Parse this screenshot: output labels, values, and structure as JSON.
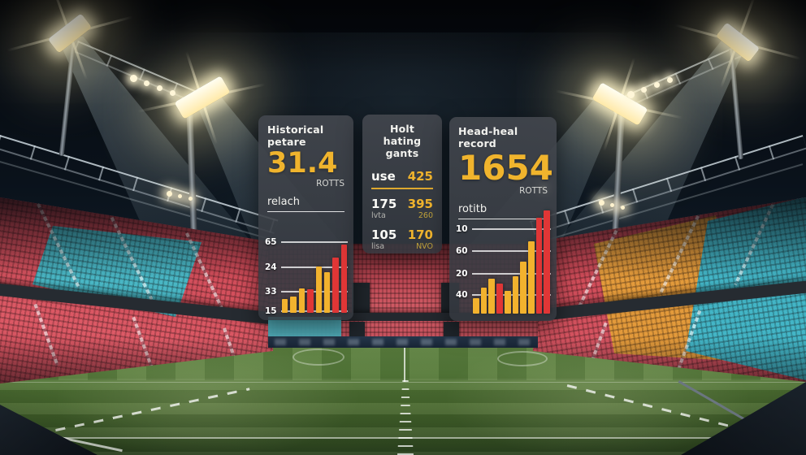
{
  "colors": {
    "accent_yellow": "#f0b42d",
    "bar_yellow": "#f2b22e",
    "bar_red": "#e03636",
    "panel_bg": "rgba(58,62,68,0.9)",
    "seat_red": "#cf4a57",
    "seat_cyan": "#49b6c4",
    "seat_orange": "#e39a3b",
    "pitch_green": "#4a692f"
  },
  "panels": {
    "historical": {
      "title": "Historical petare",
      "big_value": "31.4",
      "unit": "ROTTS",
      "caption": "relach"
    },
    "ratings": {
      "title_line1": "Holt hating",
      "title_line2": "gants",
      "rows": [
        {
          "label": "use",
          "value": "425"
        },
        {
          "label": "175",
          "label_sub": "lvta",
          "value": "395",
          "value_sub": "260"
        },
        {
          "label": "105",
          "label_sub": "lisa",
          "value": "170",
          "value_sub": "NVO"
        }
      ]
    },
    "head_to_head": {
      "title": "Head-heal record",
      "big_value": "1654",
      "unit": "ROTTS",
      "caption": "rotitb"
    }
  },
  "chart_data": [
    {
      "type": "bar",
      "panel": "historical",
      "title": "Historical petare",
      "ytick_labels": [
        "65",
        "24",
        "33",
        "15"
      ],
      "values": [
        20,
        24,
        36,
        34,
        67,
        59,
        81,
        100
      ],
      "bar_colors": [
        "yellow",
        "yellow",
        "yellow",
        "red",
        "yellow",
        "yellow",
        "red",
        "red"
      ],
      "ylim": [
        0,
        100
      ],
      "grid": true,
      "legend": false
    },
    {
      "type": "bar",
      "panel": "head_to_head",
      "title": "Head-heal record",
      "ytick_labels": [
        "10",
        "60",
        "20",
        "40"
      ],
      "values": [
        15,
        25,
        34,
        29,
        22,
        36,
        50,
        70,
        93,
        100
      ],
      "bar_colors": [
        "yellow",
        "yellow",
        "yellow",
        "red",
        "yellow",
        "yellow",
        "yellow",
        "yellow",
        "red",
        "red"
      ],
      "ylim": [
        0,
        100
      ],
      "grid": true,
      "legend": false
    }
  ]
}
